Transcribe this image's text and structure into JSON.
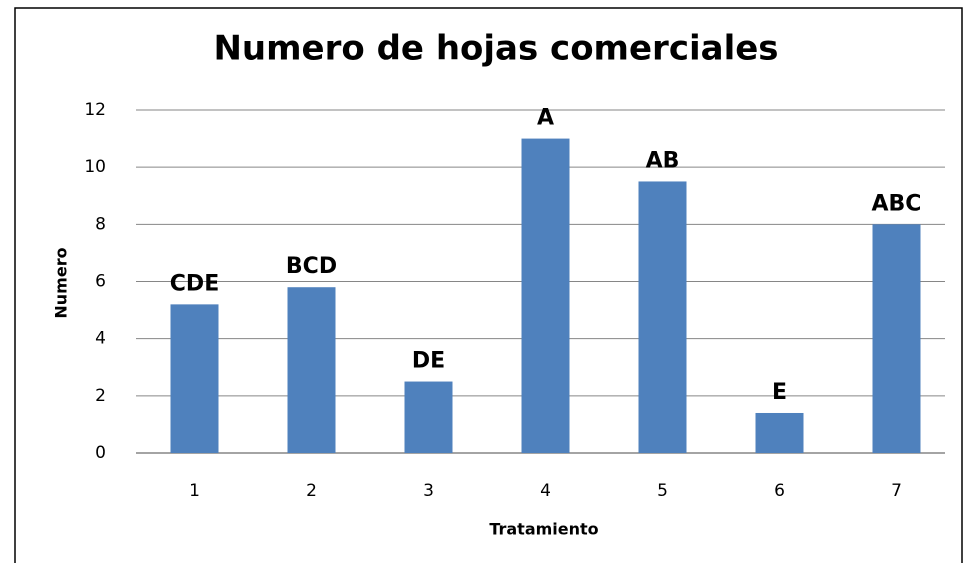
{
  "chart_data": {
    "type": "bar",
    "title": "Numero de hojas comerciales",
    "x_label": "Tratamiento",
    "y_label": "Numero",
    "categories": [
      "1",
      "2",
      "3",
      "4",
      "5",
      "6",
      "7"
    ],
    "values": [
      5.2,
      5.8,
      2.5,
      11.0,
      9.5,
      1.4,
      8.0
    ],
    "annotations": [
      "CDE",
      "BCD",
      "DE",
      "A",
      "AB",
      "E",
      "ABC"
    ],
    "color": "#4f81bd",
    "ylim": [
      0,
      12
    ],
    "yticks": [
      0,
      2,
      4,
      6,
      8,
      10,
      12
    ],
    "grid": true
  }
}
